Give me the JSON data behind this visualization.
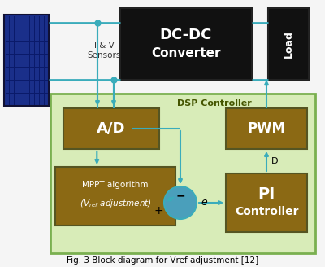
{
  "title": "Fig. 3 Block diagram for Vref adjustment [12]",
  "bg_color": "#f5f5f5",
  "dsp_bg": "#d8ecb8",
  "dsp_border": "#7ab050",
  "block_color": "#8b6914",
  "dc_dc_color": "#111111",
  "load_color": "#111111",
  "solar_dark": "#1a2f8a",
  "solar_mid": "#2244bb",
  "solar_line": "#0a1a6a",
  "arrow_color": "#3aacbb",
  "circle_color": "#4a9fbb",
  "text_light": "#ffffff",
  "text_dark": "#000000",
  "dsp_label_color": "#445500",
  "dsp_label": "DSP Controller",
  "sensor_label": "I & V\nSensors"
}
